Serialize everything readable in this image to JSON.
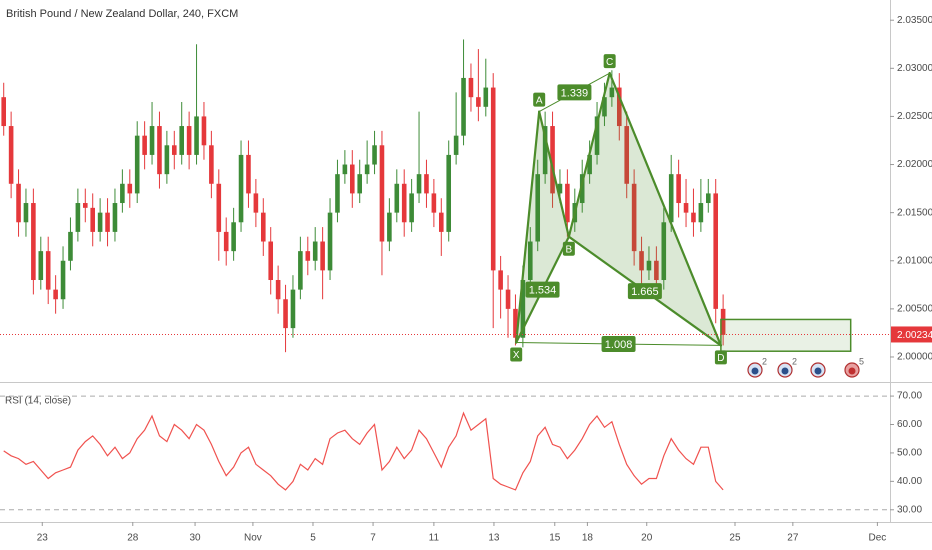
{
  "chart_data": [
    {
      "type": "candlestick",
      "title": "British Pound / New Zealand Dollar, 240, FXCM",
      "up_color": "#3d8b37",
      "down_color": "#e5383b",
      "xlim": [
        -0.5,
        119.5
      ],
      "ylim": [
        1.9974,
        2.0371
      ],
      "yticks": [
        {
          "value": 2.0,
          "label": "2.00000"
        },
        {
          "value": 2.005,
          "label": "2.00500"
        },
        {
          "value": 2.01,
          "label": "2.01000"
        },
        {
          "value": 2.015,
          "label": "2.01500"
        },
        {
          "value": 2.02,
          "label": "2.02000"
        },
        {
          "value": 2.025,
          "label": "2.02500"
        },
        {
          "value": 2.03,
          "label": "2.03000"
        },
        {
          "value": 2.035,
          "label": "2.03500"
        }
      ],
      "xticks": [
        {
          "value": 5.2,
          "label": "23"
        },
        {
          "value": 17.4,
          "label": "28"
        },
        {
          "value": 25.8,
          "label": "30"
        },
        {
          "value": 33.6,
          "label": "Nov"
        },
        {
          "value": 41.7,
          "label": "5"
        },
        {
          "value": 49.8,
          "label": "7"
        },
        {
          "value": 58,
          "label": "11"
        },
        {
          "value": 66.1,
          "label": "13"
        },
        {
          "value": 74.3,
          "label": "15"
        },
        {
          "value": 78.7,
          "label": "18"
        },
        {
          "value": 86.7,
          "label": "20"
        },
        {
          "value": 98.6,
          "label": "25"
        },
        {
          "value": 106.4,
          "label": "27"
        },
        {
          "value": 117.8,
          "label": "Dec"
        }
      ],
      "open": [
        2.027,
        2.024,
        2.018,
        2.014,
        2.016,
        2.008,
        2.011,
        2.007,
        2.006,
        2.01,
        2.013,
        2.016,
        2.0155,
        2.013,
        2.015,
        2.013,
        2.016,
        2.018,
        2.017,
        2.023,
        2.021,
        2.024,
        2.019,
        2.022,
        2.021,
        2.024,
        2.021,
        2.025,
        2.022,
        2.018,
        2.013,
        2.011,
        2.014,
        2.021,
        2.017,
        2.015,
        2.012,
        2.008,
        2.006,
        2.003,
        2.007,
        2.011,
        2.01,
        2.012,
        2.009,
        2.015,
        2.019,
        2.02,
        2.017,
        2.019,
        2.02,
        2.022,
        2.012,
        2.015,
        2.018,
        2.014,
        2.017,
        2.019,
        2.017,
        2.015,
        2.013,
        2.021,
        2.023,
        2.029,
        2.027,
        2.026,
        2.028,
        2.009,
        2.007,
        2.005,
        2.002,
        2.008,
        2.012,
        2.019,
        2.024,
        2.017,
        2.018,
        2.014,
        2.016,
        2.019,
        2.021,
        2.025,
        2.027,
        2.028,
        2.024,
        2.018,
        2.011,
        2.009,
        2.01,
        2.008,
        2.014,
        2.019,
        2.016,
        2.015,
        2.014,
        2.016,
        2.017,
        2.005
      ],
      "high": [
        2.0285,
        2.0255,
        2.0195,
        2.0175,
        2.0175,
        2.0125,
        2.0125,
        2.0085,
        2.0115,
        2.0145,
        2.0175,
        2.0175,
        2.017,
        2.0165,
        2.0165,
        2.0175,
        2.0195,
        2.0195,
        2.0245,
        2.0245,
        2.0265,
        2.0255,
        2.0235,
        2.0235,
        2.0265,
        2.0255,
        2.0325,
        2.0265,
        2.0235,
        2.0195,
        2.0145,
        2.0155,
        2.0225,
        2.0225,
        2.0185,
        2.0165,
        2.0135,
        2.0095,
        2.0075,
        2.0085,
        2.0125,
        2.0125,
        2.0135,
        2.0135,
        2.0165,
        2.0205,
        2.0215,
        2.0215,
        2.0205,
        2.0225,
        2.0235,
        2.0235,
        2.0165,
        2.0195,
        2.0195,
        2.0185,
        2.0255,
        2.0205,
        2.0185,
        2.0165,
        2.0225,
        2.0275,
        2.033,
        2.0305,
        2.032,
        2.031,
        2.0295,
        2.0105,
        2.0085,
        2.0065,
        2.0095,
        2.0135,
        2.0205,
        2.0255,
        2.0255,
        2.0195,
        2.0195,
        2.0175,
        2.0205,
        2.0225,
        2.0265,
        2.0285,
        2.0298,
        2.0295,
        2.0255,
        2.0195,
        2.0125,
        2.0115,
        2.0115,
        2.0155,
        2.021,
        2.0205,
        2.0185,
        2.0175,
        2.0185,
        2.0185,
        2.0185,
        2.0065
      ],
      "low": [
        2.023,
        2.0165,
        2.0125,
        2.0125,
        2.0065,
        2.007,
        2.0055,
        2.0045,
        2.005,
        2.009,
        2.012,
        2.014,
        2.0115,
        2.012,
        2.0115,
        2.012,
        2.015,
        2.0155,
        2.016,
        2.0195,
        2.02,
        2.0175,
        2.018,
        2.0195,
        2.02,
        2.0195,
        2.02,
        2.0205,
        2.0165,
        2.01,
        2.0095,
        2.01,
        2.013,
        2.0155,
        2.0135,
        2.0105,
        2.0065,
        2.0045,
        2.0005,
        2.002,
        2.006,
        2.0085,
        2.009,
        2.006,
        2.008,
        2.014,
        2.018,
        2.0155,
        2.016,
        2.018,
        2.019,
        2.0085,
        2.011,
        2.014,
        2.0125,
        2.013,
        2.016,
        2.0155,
        2.0135,
        2.0105,
        2.012,
        2.02,
        2.022,
        2.0255,
        2.0245,
        2.025,
        2.003,
        2.004,
        2.002,
        2.0012,
        2.001,
        2.007,
        2.011,
        2.018,
        2.0155,
        2.016,
        2.0125,
        2.013,
        2.015,
        2.018,
        2.02,
        2.024,
        2.026,
        2.0225,
        2.0165,
        2.0095,
        2.0075,
        2.008,
        2.0065,
        2.007,
        2.013,
        2.0145,
        2.0135,
        2.0125,
        2.013,
        2.015,
        2.0035,
        2.0012
      ],
      "close": [
        2.024,
        2.018,
        2.014,
        2.016,
        2.008,
        2.011,
        2.007,
        2.006,
        2.01,
        2.013,
        2.016,
        2.0155,
        2.013,
        2.015,
        2.013,
        2.016,
        2.018,
        2.017,
        2.023,
        2.021,
        2.024,
        2.019,
        2.022,
        2.021,
        2.024,
        2.021,
        2.025,
        2.022,
        2.018,
        2.013,
        2.011,
        2.014,
        2.021,
        2.017,
        2.015,
        2.012,
        2.008,
        2.006,
        2.003,
        2.007,
        2.011,
        2.01,
        2.012,
        2.009,
        2.015,
        2.019,
        2.02,
        2.017,
        2.019,
        2.02,
        2.022,
        2.012,
        2.015,
        2.018,
        2.014,
        2.017,
        2.019,
        2.017,
        2.015,
        2.013,
        2.021,
        2.023,
        2.029,
        2.027,
        2.026,
        2.028,
        2.009,
        2.007,
        2.005,
        2.002,
        2.008,
        2.012,
        2.019,
        2.024,
        2.017,
        2.018,
        2.014,
        2.016,
        2.019,
        2.021,
        2.025,
        2.027,
        2.028,
        2.024,
        2.018,
        2.011,
        2.009,
        2.01,
        2.008,
        2.014,
        2.019,
        2.016,
        2.015,
        2.014,
        2.016,
        2.017,
        2.005,
        2.0023
      ],
      "last_price": 2.00234,
      "last_price_color": "#e5383b",
      "pattern": {
        "color": "#4c8c2b",
        "points": [
          {
            "name": "X",
            "x": 69.1,
            "price": 2.0015
          },
          {
            "name": "A",
            "x": 72.2,
            "price": 2.0255
          },
          {
            "name": "B",
            "x": 76.2,
            "price": 2.0125
          },
          {
            "name": "C",
            "x": 81.7,
            "price": 2.0295
          },
          {
            "name": "D",
            "x": 96.7,
            "price": 2.0012
          }
        ],
        "ratios": [
          {
            "from": "A",
            "to": "C",
            "value": 1.339
          },
          {
            "from": "X",
            "to": "B",
            "value": 1.534
          },
          {
            "from": "B",
            "to": "D",
            "value": 1.665
          },
          {
            "from": "X",
            "to": "D",
            "value": 1.008
          }
        ]
      },
      "target_zone": {
        "x": [
          96.7,
          114.2
        ],
        "price": [
          2.0006,
          2.0039
        ]
      },
      "events": [
        2,
        2,
        null,
        5
      ]
    },
    {
      "type": "line",
      "title": "RSI (14, close)",
      "color": "#f0524f",
      "xlim": [
        -0.5,
        119.5
      ],
      "ylim": [
        25.7,
        74.6
      ],
      "yticks": [
        {
          "value": 30,
          "label": "30.00"
        },
        {
          "value": 40,
          "label": "40.00"
        },
        {
          "value": 50,
          "label": "50.00"
        },
        {
          "value": 60,
          "label": "60.00"
        },
        {
          "value": 70,
          "label": "70.00"
        }
      ],
      "levels": [
        70,
        30
      ],
      "values": [
        50.7,
        49,
        48,
        46,
        47,
        44,
        41,
        43,
        44,
        45,
        51,
        54,
        56,
        53,
        49,
        52,
        48,
        50,
        55,
        58,
        63,
        56,
        54,
        60,
        58,
        55,
        60,
        58,
        53,
        47,
        42,
        45,
        50,
        52,
        46,
        44,
        42,
        39,
        37,
        40,
        46,
        44,
        48,
        46,
        55,
        57,
        58,
        55,
        53,
        57,
        60,
        44,
        47,
        52,
        48,
        51,
        58,
        55,
        50,
        45,
        52,
        56,
        64,
        58,
        60,
        62,
        41,
        39,
        38,
        37,
        43,
        47,
        56,
        59,
        53,
        52,
        48,
        51,
        55,
        60,
        63,
        59,
        61,
        53,
        46,
        42,
        39,
        41,
        41,
        49,
        55,
        51,
        48,
        46,
        52,
        52,
        40,
        37
      ]
    }
  ]
}
